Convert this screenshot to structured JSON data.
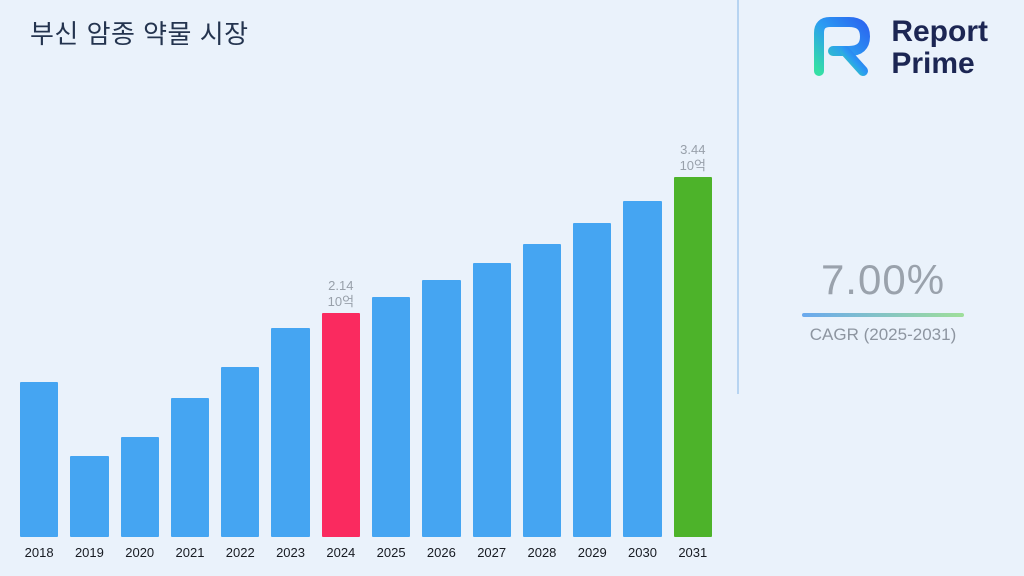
{
  "page": {
    "title": "부신 암종 약물 시장"
  },
  "logo": {
    "line1": "Report",
    "line2": "Prime"
  },
  "stats": {
    "cagr_value": "7.00%",
    "cagr_label": "CAGR (2025-2031)"
  },
  "colors": {
    "background": "#eaf2fb",
    "bar_blue": "#45a5f2",
    "bar_pink": "#fa2a5f",
    "bar_green": "#4db32a",
    "title_navy": "#24344f",
    "logo_navy": "#1c2653",
    "gray_text": "#98a0aa"
  },
  "chart_data": {
    "type": "bar",
    "title": "부신 암종 약물 시장",
    "unit": "10억",
    "categories": [
      "2018",
      "2019",
      "2020",
      "2021",
      "2022",
      "2023",
      "2024",
      "2025",
      "2026",
      "2027",
      "2028",
      "2029",
      "2030",
      "2031"
    ],
    "values": [
      1.48,
      0.77,
      0.95,
      1.33,
      1.62,
      2.0,
      2.14,
      2.29,
      2.45,
      2.62,
      2.8,
      3.0,
      3.21,
      3.44
    ],
    "ylim": [
      0,
      3.8
    ],
    "grid": false,
    "legend": false,
    "bar_default_color": "#45a5f2",
    "highlight_bars": [
      {
        "category": "2024",
        "color": "#fa2a5f",
        "label_lines": [
          "2.14",
          "10억"
        ]
      },
      {
        "category": "2031",
        "color": "#4db32a",
        "label_lines": [
          "3.44",
          "10억"
        ]
      }
    ],
    "cagr_annotation": {
      "value": "7.00%",
      "label": "CAGR (2025-2031)"
    }
  }
}
